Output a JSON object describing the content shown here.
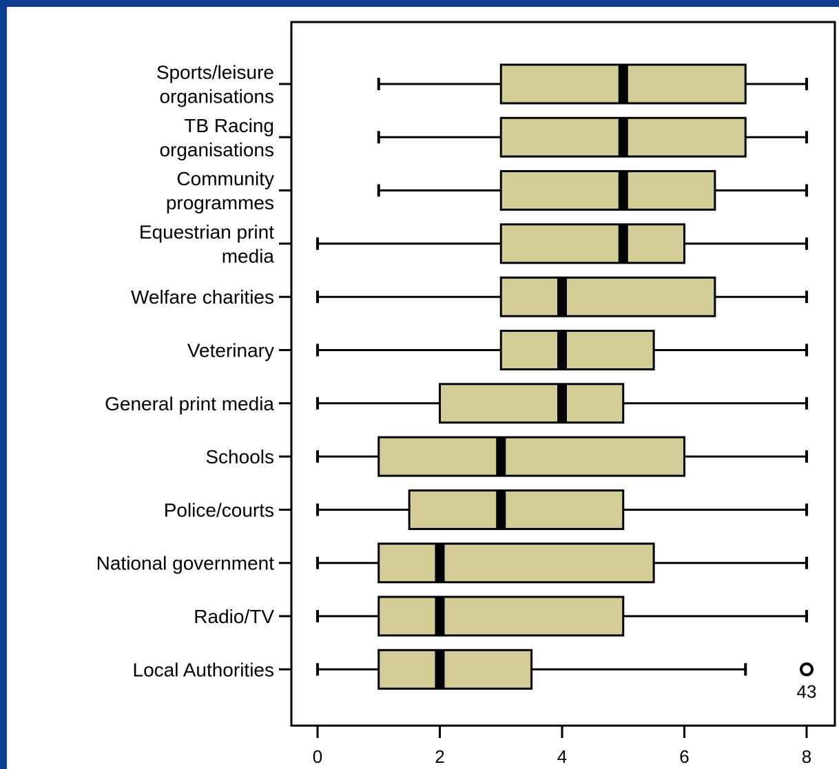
{
  "colors": {
    "frame": "#0b3d91",
    "background": "#ffffff",
    "box_fill": "#d4cd98",
    "stroke": "#000000"
  },
  "chart_data": {
    "type": "boxplot",
    "orientation": "horizontal",
    "xlim": [
      0,
      8
    ],
    "xticks": [
      0,
      2,
      4,
      6,
      8
    ],
    "xtick_labels": [
      "0",
      "2",
      "4",
      "6",
      "8"
    ],
    "grid": false,
    "categories": [
      {
        "label": [
          "Sports/leisure",
          "organisations"
        ],
        "min": 1,
        "q1": 3,
        "median": 5,
        "q3": 7,
        "max": 8,
        "outliers": []
      },
      {
        "label": [
          "TB Racing",
          "organisations"
        ],
        "min": 1,
        "q1": 3,
        "median": 5,
        "q3": 7,
        "max": 8,
        "outliers": []
      },
      {
        "label": [
          "Community",
          "programmes"
        ],
        "min": 1,
        "q1": 3,
        "median": 5,
        "q3": 6.5,
        "max": 8,
        "outliers": []
      },
      {
        "label": [
          "Equestrian print",
          "media"
        ],
        "min": 0,
        "q1": 3,
        "median": 5,
        "q3": 6,
        "max": 8,
        "outliers": []
      },
      {
        "label": [
          "Welfare charities"
        ],
        "min": 0,
        "q1": 3,
        "median": 4,
        "q3": 6.5,
        "max": 8,
        "outliers": []
      },
      {
        "label": [
          "Veterinary"
        ],
        "min": 0,
        "q1": 3,
        "median": 4,
        "q3": 5.5,
        "max": 8,
        "outliers": []
      },
      {
        "label": [
          "General print media"
        ],
        "min": 0,
        "q1": 2,
        "median": 4,
        "q3": 5,
        "max": 8,
        "outliers": []
      },
      {
        "label": [
          "Schools"
        ],
        "min": 0,
        "q1": 1,
        "median": 3,
        "q3": 6,
        "max": 8,
        "outliers": []
      },
      {
        "label": [
          "Police/courts"
        ],
        "min": 0,
        "q1": 1.5,
        "median": 3,
        "q3": 5,
        "max": 8,
        "outliers": []
      },
      {
        "label": [
          "National government"
        ],
        "min": 0,
        "q1": 1,
        "median": 2,
        "q3": 5.5,
        "max": 8,
        "outliers": []
      },
      {
        "label": [
          "Radio/TV"
        ],
        "min": 0,
        "q1": 1,
        "median": 2,
        "q3": 5,
        "max": 8,
        "outliers": []
      },
      {
        "label": [
          "Local Authorities"
        ],
        "min": 0,
        "q1": 1,
        "median": 2,
        "q3": 3.5,
        "max": 7,
        "outliers": [
          {
            "value": 8,
            "label": "43"
          }
        ]
      }
    ]
  }
}
